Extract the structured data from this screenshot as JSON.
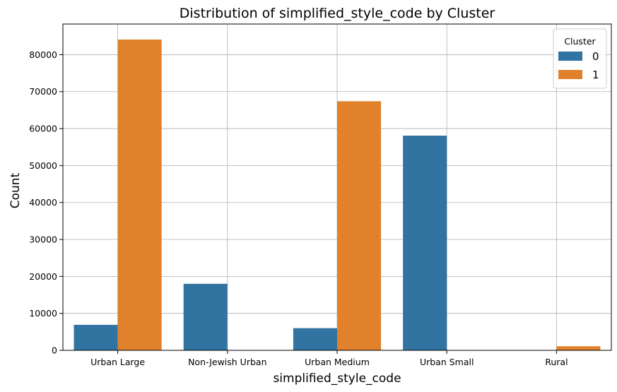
{
  "chart_data": {
    "type": "bar",
    "title": "Distribution of simplified_style_code by Cluster",
    "xlabel": "simplified_style_code",
    "ylabel": "Count",
    "categories": [
      "Urban Large",
      "Non-Jewish Urban",
      "Urban Medium",
      "Urban Small",
      "Rural"
    ],
    "series": [
      {
        "name": "0",
        "color": "#3274a1",
        "values": [
          6900,
          18000,
          6000,
          58100,
          0
        ]
      },
      {
        "name": "1",
        "color": "#e1812c",
        "values": [
          84100,
          0,
          67400,
          0,
          1100
        ]
      }
    ],
    "ylim": [
      0,
      88300
    ],
    "yticks": [
      0,
      10000,
      20000,
      30000,
      40000,
      50000,
      60000,
      70000,
      80000
    ],
    "grid": true,
    "legend": {
      "title": "Cluster",
      "placement": "top-right"
    }
  }
}
